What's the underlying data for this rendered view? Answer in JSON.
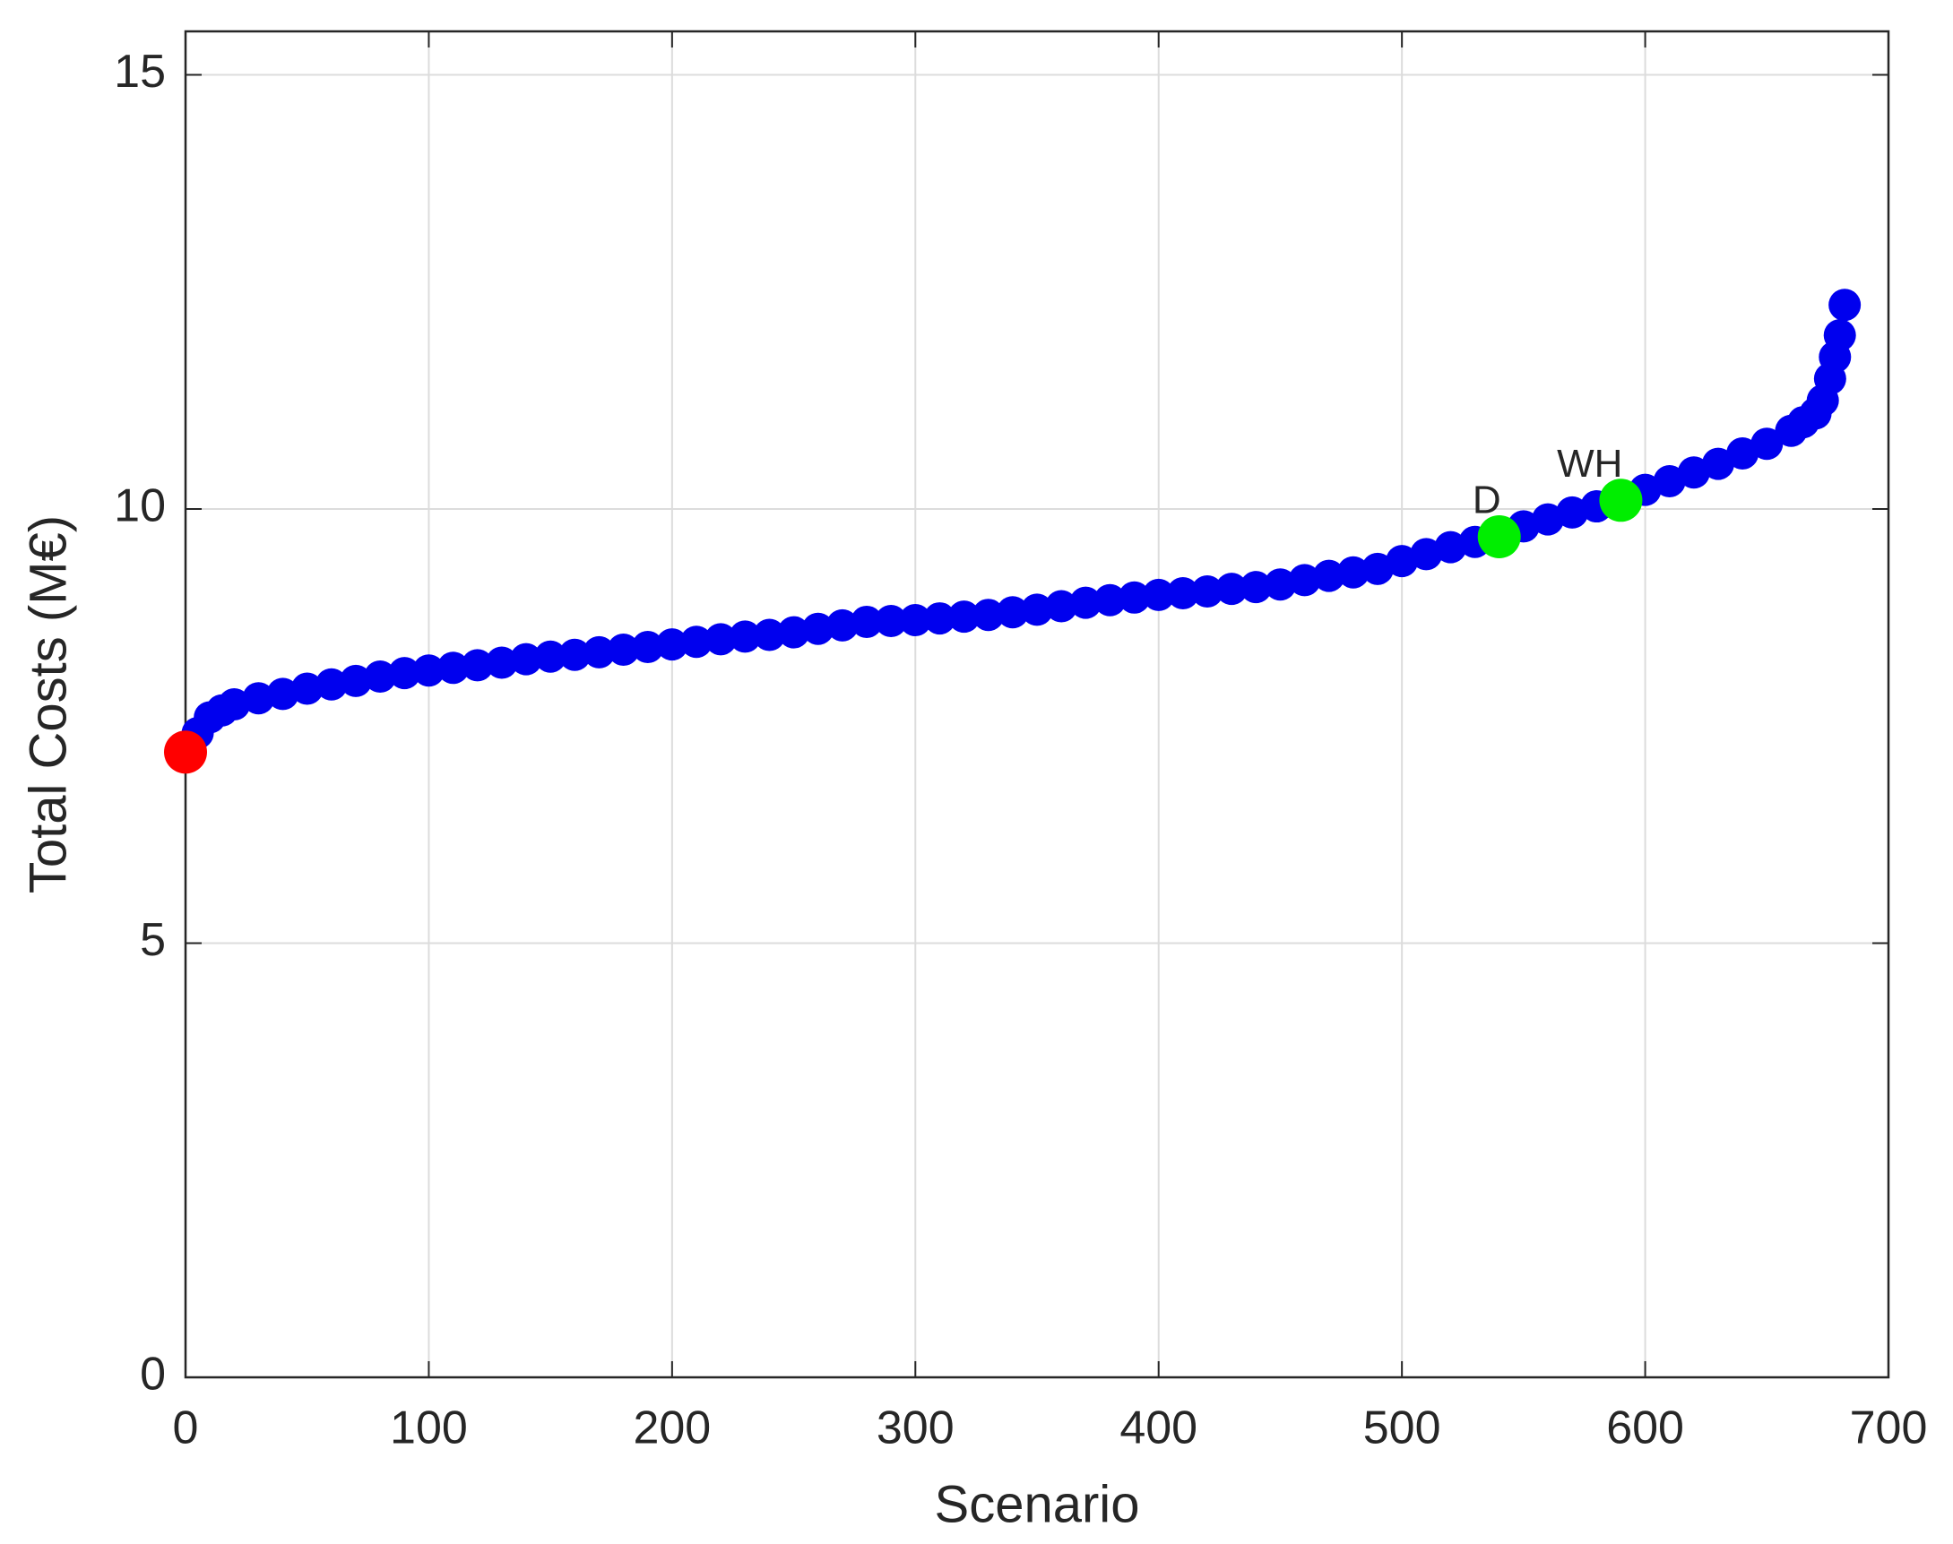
{
  "chart_data": {
    "type": "scatter",
    "xlabel": "Scenario",
    "ylabel": "Total Costs (M€)",
    "xlim": [
      0,
      700
    ],
    "xticks": [
      0,
      100,
      200,
      300,
      400,
      500,
      600,
      700
    ],
    "ylim": [
      0,
      15.5
    ],
    "yticks": [
      0,
      5,
      10,
      15
    ],
    "grid": true,
    "series": [
      {
        "color": "#0000ee",
        "x": [
          0,
          5,
          10,
          15,
          20,
          30,
          40,
          50,
          60,
          70,
          80,
          90,
          100,
          110,
          120,
          130,
          140,
          150,
          160,
          170,
          180,
          190,
          200,
          210,
          220,
          230,
          240,
          250,
          260,
          270,
          280,
          290,
          300,
          310,
          320,
          330,
          340,
          350,
          360,
          370,
          380,
          390,
          400,
          410,
          420,
          430,
          440,
          450,
          460,
          470,
          480,
          490,
          500,
          510,
          520,
          530,
          540,
          550,
          560,
          570,
          580,
          590,
          600,
          610,
          620,
          630,
          640,
          650,
          660,
          665,
          670,
          673,
          676,
          678,
          680,
          682
        ],
        "values": [
          7.2,
          7.42,
          7.6,
          7.68,
          7.75,
          7.82,
          7.87,
          7.93,
          7.98,
          8.02,
          8.07,
          8.11,
          8.14,
          8.17,
          8.2,
          8.23,
          8.27,
          8.3,
          8.32,
          8.35,
          8.38,
          8.41,
          8.44,
          8.47,
          8.5,
          8.53,
          8.55,
          8.58,
          8.62,
          8.66,
          8.7,
          8.71,
          8.72,
          8.74,
          8.76,
          8.78,
          8.81,
          8.84,
          8.88,
          8.92,
          8.95,
          8.98,
          9.01,
          9.03,
          9.05,
          9.08,
          9.1,
          9.13,
          9.18,
          9.23,
          9.27,
          9.31,
          9.4,
          9.48,
          9.56,
          9.62,
          9.7,
          9.8,
          9.88,
          9.96,
          10.03,
          10.1,
          10.22,
          10.32,
          10.42,
          10.52,
          10.64,
          10.75,
          10.9,
          11.0,
          11.1,
          11.25,
          11.5,
          11.75,
          12.0,
          12.35
        ]
      }
    ],
    "highlights": [
      {
        "x": 0,
        "value": 7.2,
        "color": "#ff0000"
      },
      {
        "label": "D",
        "x": 540,
        "value": 9.68,
        "color": "#00ee00"
      },
      {
        "label": "WH",
        "x": 590,
        "value": 10.1,
        "color": "#00ee00"
      }
    ]
  }
}
